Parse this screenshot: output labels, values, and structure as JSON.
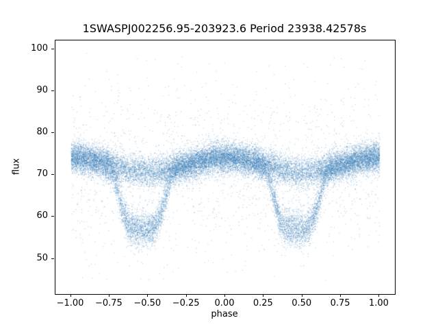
{
  "chart_data": {
    "type": "scatter",
    "title": "1SWASPJ002256.95-203923.6 Period 23938.42578s",
    "xlabel": "phase",
    "ylabel": "flux",
    "xlim": [
      -1.1,
      1.1
    ],
    "ylim": [
      41.6,
      102.1
    ],
    "xticks": [
      -1.0,
      -0.75,
      -0.5,
      -0.25,
      0.0,
      0.25,
      0.5,
      0.75,
      1.0
    ],
    "xtick_labels": [
      "−1.00",
      "−0.75",
      "−0.50",
      "−0.25",
      "0.00",
      "0.25",
      "0.50",
      "0.75",
      "1.00"
    ],
    "yticks": [
      50,
      60,
      70,
      80,
      90,
      100
    ],
    "ytick_labels": [
      "50",
      "60",
      "70",
      "80",
      "90",
      "100"
    ],
    "grid": false,
    "legend": null,
    "marker_color": "#3078b3",
    "marker_alpha": 0.45,
    "n_points": 26000,
    "seed": 20230922,
    "description": "Phase-folded eclipsing-binary light curve over phase -1 to 1. Dense out-of-eclipse band of flux about 68-77 peaking near 74-75 at phase 0; deep broad eclipses centered near phase -0.55 and +0.45 with flat bottoms at flux about 56-58; sparse noise outliers spanning flux about 45-99 at all phases.",
    "model": {
      "x_range": [
        -1.0,
        1.0
      ],
      "band_flux": 70.8,
      "band_sigma": 1.8,
      "hump_amplitude": 3.4,
      "eclipse_center_phase": 0.46,
      "eclipse_width": 0.16,
      "eclipse_flux": 57.0,
      "eclipse_flux_sigma": 1.6,
      "eclipse_fraction": 0.5,
      "outlier_fraction": 0.06,
      "outlier_center": 71.0,
      "outlier_sigma": 11.0,
      "flux_min": 44.5,
      "flux_max": 99.3
    }
  }
}
